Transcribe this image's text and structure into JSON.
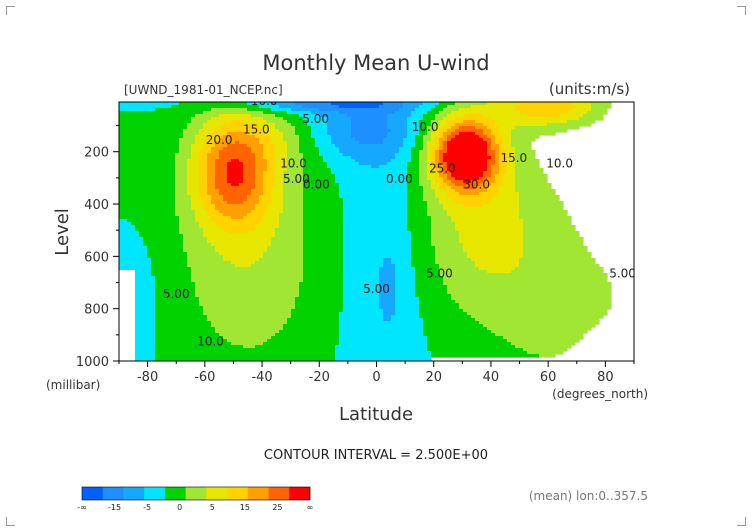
{
  "chart_data": {
    "type": "heatmap",
    "title": "Monthly Mean U-wind",
    "file_label": "[UWND_1981-01_NCEP.nc]",
    "units_label": "(units:m/s)",
    "xlabel": "Latitude",
    "x_unit_label": "(degrees_north)",
    "ylabel": "Level",
    "y_unit_label": "(millibar)",
    "xlim": [
      -90,
      90
    ],
    "ylim": [
      1000,
      10
    ],
    "x_ticks": [
      -80,
      -60,
      -40,
      -20,
      0,
      20,
      40,
      60,
      80
    ],
    "y_ticks": [
      200,
      400,
      600,
      800,
      1000
    ],
    "contour_interval_text": "CONTOUR INTERVAL = 2.500E+00",
    "contour_interval": 2.5,
    "footnote": "(mean) lon:0..357.5",
    "contour_labels": [
      {
        "text": "-10.0",
        "lat": -40,
        "lev": 22
      },
      {
        "text": "-5.00",
        "lat": -22,
        "lev": 90
      },
      {
        "text": "20.0",
        "lat": -55,
        "lev": 170
      },
      {
        "text": "15.0",
        "lat": -42,
        "lev": 130
      },
      {
        "text": "10.0",
        "lat": -29,
        "lev": 260
      },
      {
        "text": "5.00",
        "lat": -28,
        "lev": 320
      },
      {
        "text": "0.00",
        "lat": -21,
        "lev": 340
      },
      {
        "text": "0.00",
        "lat": 8,
        "lev": 320
      },
      {
        "text": "10.0",
        "lat": 17,
        "lev": 120
      },
      {
        "text": "25.0",
        "lat": 23,
        "lev": 280
      },
      {
        "text": "30.0",
        "lat": 35,
        "lev": 340
      },
      {
        "text": "15.0",
        "lat": 48,
        "lev": 240
      },
      {
        "text": "10.0",
        "lat": 64,
        "lev": 260
      },
      {
        "text": "5.00",
        "lat": 22,
        "lev": 680
      },
      {
        "text": "5.00",
        "lat": 0,
        "lev": 740
      },
      {
        "text": "5.00",
        "lat": -70,
        "lev": 760
      },
      {
        "text": "10.0",
        "lat": -58,
        "lev": 940
      },
      {
        "text": "5.00",
        "lat": 86,
        "lev": 680
      }
    ],
    "colorbar": {
      "levels": [
        "-∞",
        "-15",
        "-5",
        "0",
        "5",
        "15",
        "25",
        "∞"
      ],
      "bins": [
        -20,
        -15,
        -10,
        -5,
        0,
        5,
        10,
        15,
        20,
        25,
        30,
        35
      ],
      "colors": [
        "#0061ff",
        "#1e8fff",
        "#16a8ff",
        "#00e6ff",
        "#00d200",
        "#a0e632",
        "#e6e600",
        "#ffd200",
        "#ffa000",
        "#ff6400",
        "#ff0000"
      ]
    }
  }
}
